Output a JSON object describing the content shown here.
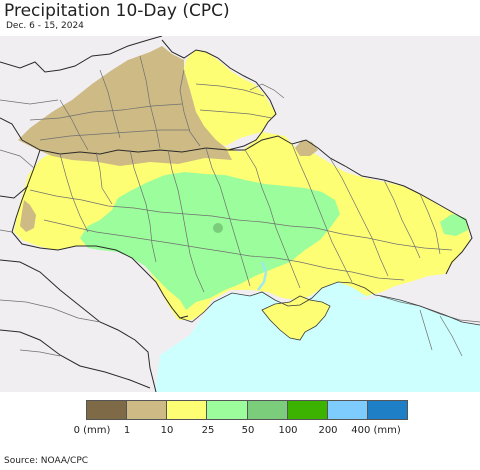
{
  "title": "Precipitation 10-Day (CPC)",
  "subtitle": "Dec. 6 - 15, 2024",
  "source": "Source: NOAA/CPC",
  "legend": {
    "colors": [
      "#7f6a48",
      "#cdba84",
      "#fefe74",
      "#9bfd9b",
      "#7bcd7b",
      "#3cb300",
      "#7ecbfd",
      "#1e7fc6"
    ],
    "labels": [
      "0 (mm)",
      "1",
      "10",
      "25",
      "50",
      "100",
      "200",
      "400 (mm)"
    ]
  },
  "map_colors": {
    "background_land": "#f1eef1",
    "sea": "#ccfffe",
    "border_dark": "#2a2a2a",
    "border_gray": "#707070"
  }
}
